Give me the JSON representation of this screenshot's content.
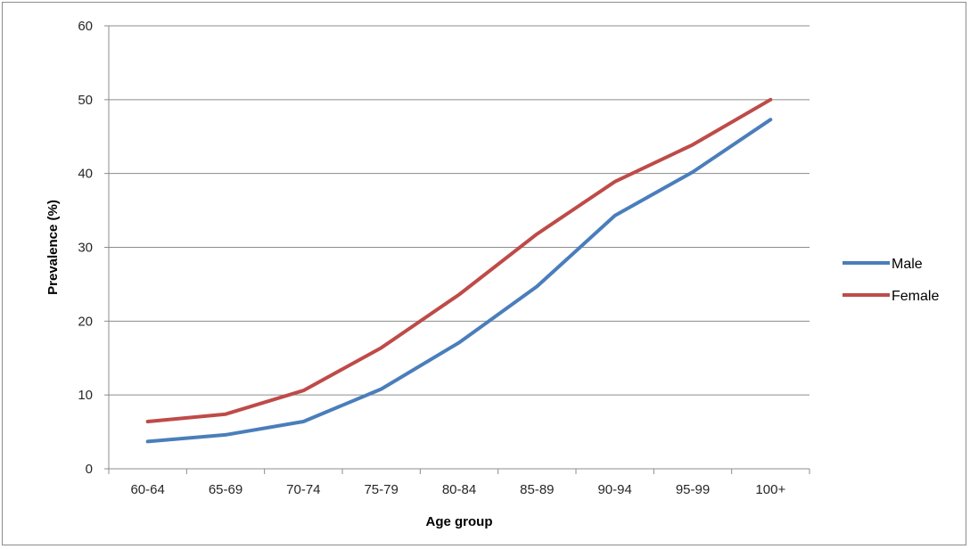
{
  "chart_data": {
    "type": "line",
    "categories": [
      "60-64",
      "65-69",
      "70-74",
      "75-79",
      "80-84",
      "85-89",
      "90-94",
      "95-99",
      "100+"
    ],
    "series": [
      {
        "name": "Male",
        "color": "#4a7ebb",
        "values": [
          3.7,
          4.6,
          6.4,
          10.8,
          17.1,
          24.7,
          34.3,
          40.2,
          47.3
        ]
      },
      {
        "name": "Female",
        "color": "#be4b48",
        "values": [
          6.4,
          7.4,
          10.6,
          16.4,
          23.6,
          31.8,
          38.9,
          43.9,
          50.0
        ]
      }
    ],
    "xlabel": "Age group",
    "ylabel": "Prevalence (%)",
    "ylim": [
      0,
      60
    ],
    "yticks": [
      "0",
      "10",
      "20",
      "30",
      "40",
      "50",
      "60"
    ],
    "grid": true,
    "legend_position": "right"
  }
}
